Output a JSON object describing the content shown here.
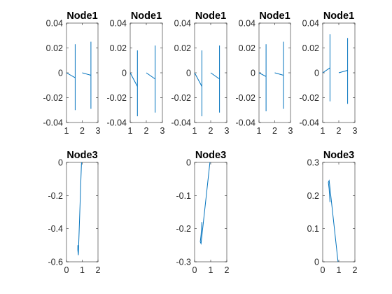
{
  "colors": {
    "line": "#0072BD",
    "axes": "#262626",
    "background": "#ffffff"
  },
  "chart_data": [
    {
      "type": "line",
      "title": "Node1",
      "xlim": [
        1,
        3
      ],
      "ylim": [
        -0.04,
        0.04
      ],
      "xticks": [
        "1",
        "2",
        "3"
      ],
      "yticks": [
        "0.04",
        "0.02",
        "0",
        "-0.02",
        "-0.04"
      ],
      "segments": [
        [
          [
            1.0,
            0.0
          ],
          [
            1.55,
            -0.004
          ]
        ],
        [
          [
            1.55,
            0.023
          ],
          [
            1.55,
            -0.03
          ]
        ],
        [
          [
            2.0,
            0.0
          ],
          [
            2.55,
            -0.002
          ]
        ],
        [
          [
            2.55,
            0.025
          ],
          [
            2.55,
            -0.029
          ]
        ]
      ]
    },
    {
      "type": "line",
      "title": "Node1",
      "xlim": [
        1,
        3
      ],
      "ylim": [
        -0.04,
        0.04
      ],
      "xticks": [
        "1",
        "2",
        "3"
      ],
      "yticks": [
        "0.04",
        "0.02",
        "0",
        "-0.02",
        "-0.04"
      ],
      "segments": [
        [
          [
            1.0,
            0.0
          ],
          [
            1.45,
            -0.011
          ]
        ],
        [
          [
            1.45,
            0.018
          ],
          [
            1.45,
            -0.035
          ]
        ],
        [
          [
            2.0,
            0.0
          ],
          [
            2.55,
            -0.005
          ]
        ],
        [
          [
            2.55,
            0.022
          ],
          [
            2.55,
            -0.032
          ]
        ]
      ]
    },
    {
      "type": "line",
      "title": "Node1",
      "xlim": [
        1,
        3
      ],
      "ylim": [
        -0.04,
        0.04
      ],
      "xticks": [
        "1",
        "2",
        "3"
      ],
      "yticks": [
        "0.04",
        "0.02",
        "0",
        "-0.02",
        "-0.04"
      ],
      "segments": [
        [
          [
            1.0,
            0.0
          ],
          [
            1.45,
            -0.011
          ]
        ],
        [
          [
            1.45,
            0.018
          ],
          [
            1.45,
            -0.035
          ]
        ],
        [
          [
            2.0,
            0.0
          ],
          [
            2.55,
            -0.005
          ]
        ],
        [
          [
            2.55,
            0.022
          ],
          [
            2.55,
            -0.032
          ]
        ]
      ]
    },
    {
      "type": "line",
      "title": "Node1",
      "xlim": [
        1,
        3
      ],
      "ylim": [
        -0.04,
        0.04
      ],
      "xticks": [
        "1",
        "2",
        "3"
      ],
      "yticks": [
        "0.04",
        "0.02",
        "0",
        "-0.02",
        "-0.04"
      ],
      "segments": [
        [
          [
            1.0,
            0.0
          ],
          [
            1.45,
            -0.003
          ]
        ],
        [
          [
            1.45,
            0.023
          ],
          [
            1.45,
            -0.031
          ]
        ],
        [
          [
            2.0,
            0.0
          ],
          [
            2.55,
            -0.002
          ]
        ],
        [
          [
            2.55,
            0.025
          ],
          [
            2.55,
            -0.029
          ]
        ]
      ]
    },
    {
      "type": "line",
      "title": "Node1",
      "xlim": [
        1,
        3
      ],
      "ylim": [
        -0.04,
        0.04
      ],
      "xticks": [
        "1",
        "2",
        "3"
      ],
      "yticks": [
        "0.04",
        "0.02",
        "0",
        "-0.02",
        "-0.04"
      ],
      "segments": [
        [
          [
            1.0,
            0.0
          ],
          [
            1.45,
            0.004
          ]
        ],
        [
          [
            1.45,
            0.031
          ],
          [
            1.45,
            -0.023
          ]
        ],
        [
          [
            2.0,
            0.0
          ],
          [
            2.55,
            0.002
          ]
        ],
        [
          [
            2.55,
            0.028
          ],
          [
            2.55,
            -0.025
          ]
        ]
      ]
    },
    {
      "type": "line",
      "title": "Node3",
      "xlim": [
        0,
        2
      ],
      "ylim": [
        -0.6,
        0
      ],
      "xticks": [
        "0",
        "1",
        "2"
      ],
      "yticks": [
        "0",
        "-0.2",
        "-0.4",
        "-0.6"
      ],
      "segments": [
        [
          [
            0.95,
            0.0
          ],
          [
            0.75,
            -0.56
          ],
          [
            0.72,
            -0.53
          ],
          [
            0.72,
            -0.5
          ]
        ]
      ]
    },
    {
      "type": "line",
      "title": "Node3",
      "xlim": [
        0,
        2
      ],
      "ylim": [
        -0.3,
        0
      ],
      "xticks": [
        "0",
        "1",
        "2"
      ],
      "yticks": [
        "0",
        "-0.1",
        "-0.2",
        "-0.3"
      ],
      "segments": [
        [
          [
            0.95,
            0.0
          ],
          [
            0.4,
            -0.245
          ],
          [
            0.35,
            -0.24
          ],
          [
            0.4,
            -0.22
          ],
          [
            0.45,
            -0.18
          ]
        ]
      ]
    },
    {
      "type": "line",
      "title": "Node3",
      "xlim": [
        0,
        2
      ],
      "ylim": [
        0,
        0.3
      ],
      "xticks": [
        "0",
        "1",
        "2"
      ],
      "yticks": [
        "0.3",
        "0.2",
        "0.1",
        "0"
      ],
      "segments": [
        [
          [
            0.95,
            0.0
          ],
          [
            0.4,
            0.245
          ],
          [
            0.35,
            0.24
          ],
          [
            0.4,
            0.22
          ],
          [
            0.45,
            0.18
          ]
        ]
      ]
    }
  ]
}
